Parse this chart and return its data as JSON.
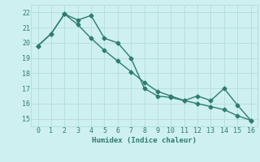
{
  "line1_x": [
    0,
    1,
    2,
    3,
    4,
    5,
    6,
    7,
    8,
    9,
    10,
    11,
    12,
    13,
    14,
    15,
    16
  ],
  "line1_y": [
    19.8,
    20.6,
    21.9,
    21.5,
    21.8,
    20.3,
    20.0,
    19.0,
    17.0,
    16.5,
    16.4,
    16.2,
    16.5,
    16.2,
    17.0,
    15.9,
    14.9
  ],
  "line2_x": [
    0,
    1,
    2,
    3,
    4,
    5,
    6,
    7,
    8,
    9,
    10,
    11,
    12,
    13,
    14,
    15,
    16
  ],
  "line2_y": [
    19.8,
    20.6,
    21.9,
    21.2,
    20.3,
    19.5,
    18.8,
    18.1,
    17.4,
    16.8,
    16.5,
    16.2,
    16.0,
    15.8,
    15.6,
    15.2,
    14.9
  ],
  "color": "#2d7d6e",
  "bg_color": "#cff0f0",
  "grid_color": "#b8dede",
  "xlabel": "Humidex (Indice chaleur)",
  "xlim": [
    -0.5,
    16.5
  ],
  "ylim": [
    14.5,
    22.5
  ],
  "yticks": [
    15,
    16,
    17,
    18,
    19,
    20,
    21,
    22
  ],
  "xticks": [
    0,
    1,
    2,
    3,
    4,
    5,
    6,
    7,
    8,
    9,
    10,
    11,
    12,
    13,
    14,
    15,
    16
  ]
}
